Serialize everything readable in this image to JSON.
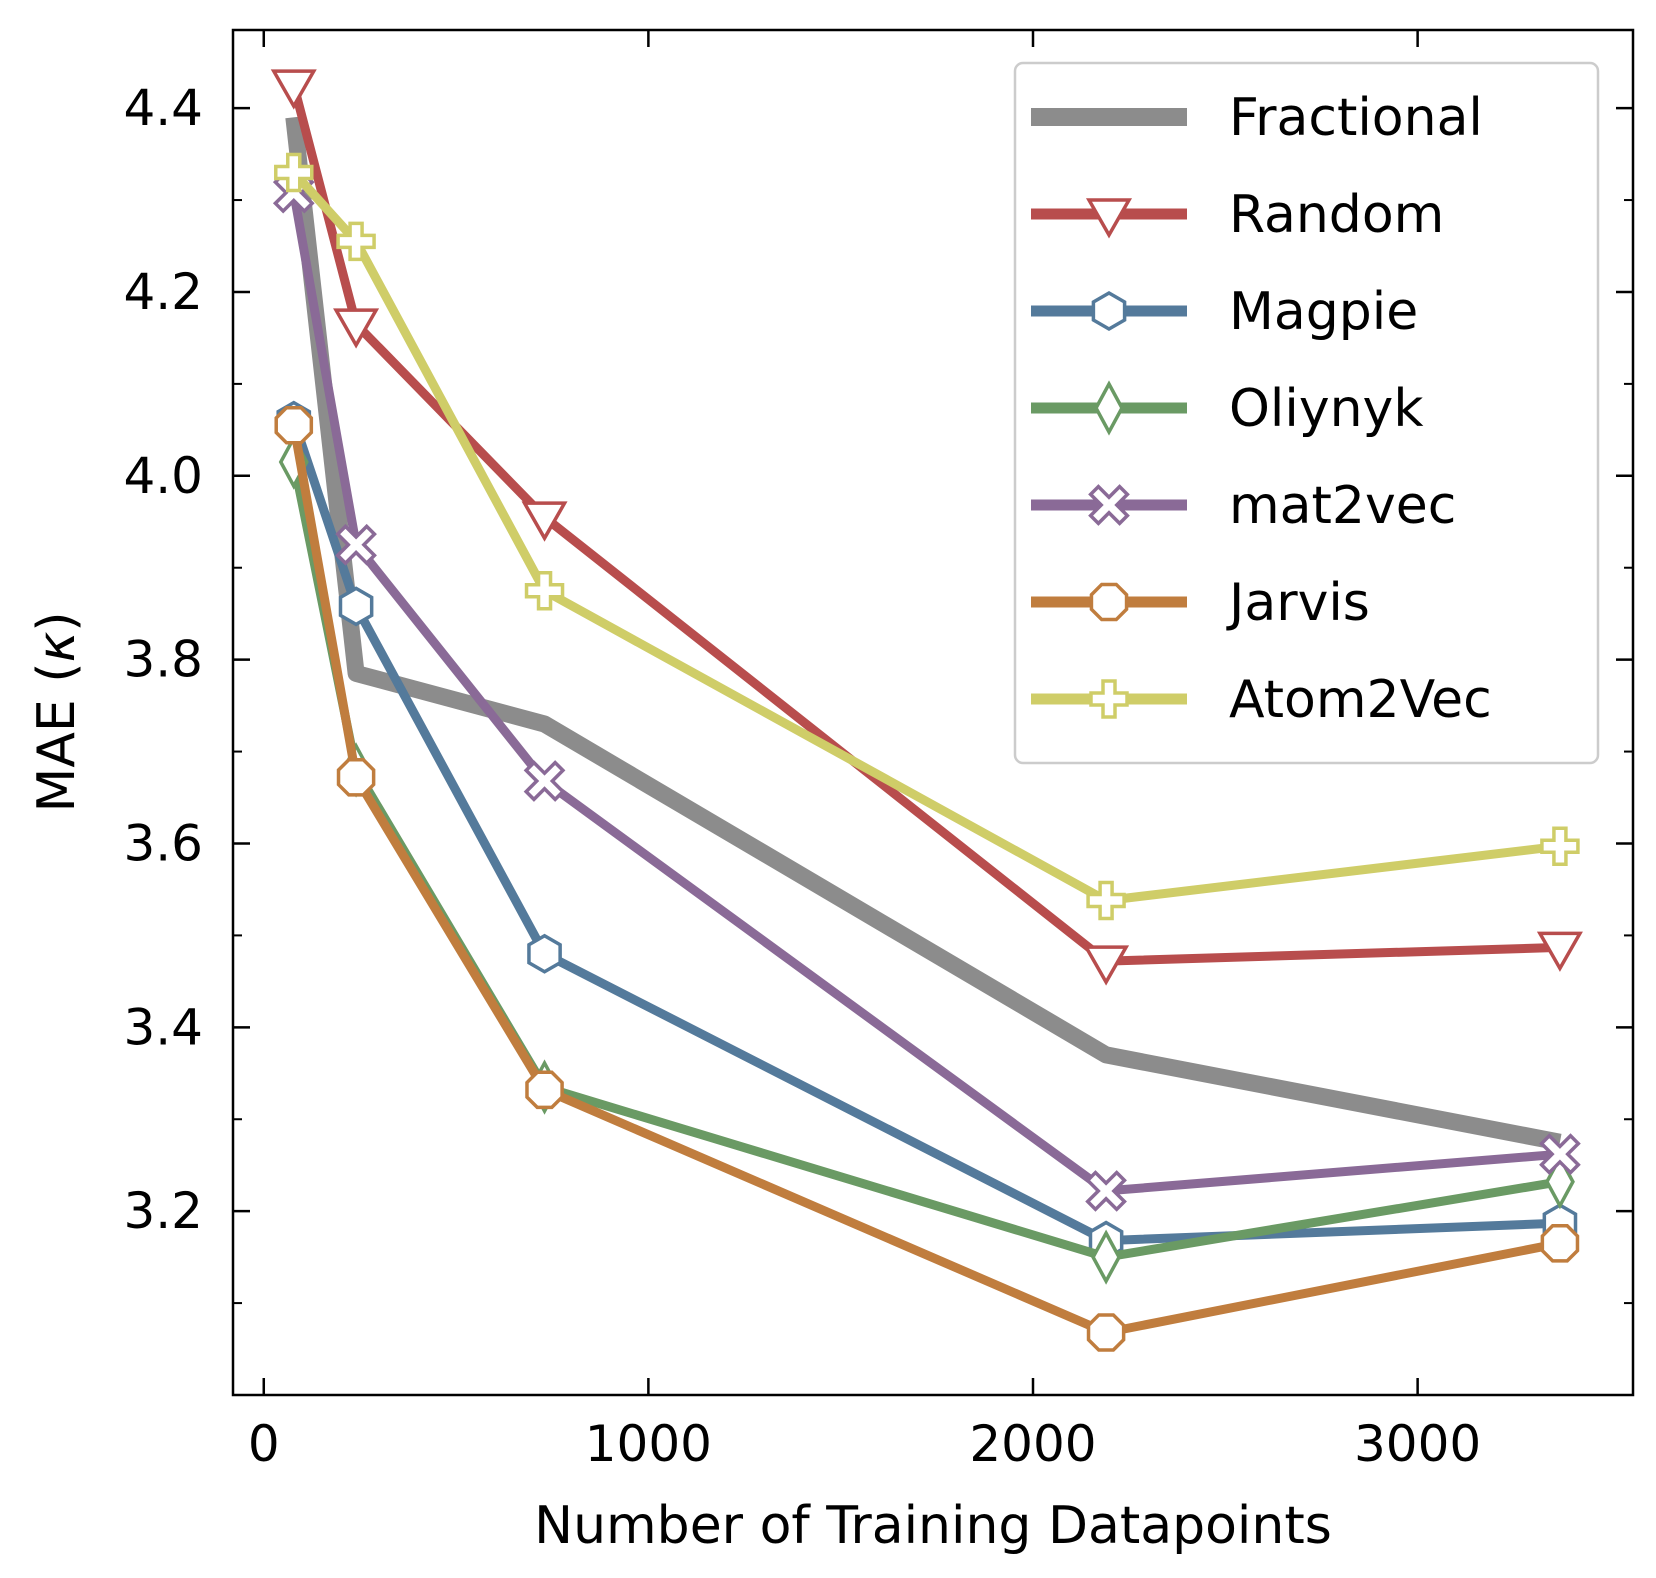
{
  "chart_data": {
    "type": "line",
    "xlabel": "Number of Training Datapoints",
    "ylabel_main": "MAE (",
    "ylabel_symbol": "κ",
    "ylabel_close": ")",
    "xlim": [
      -80,
      3560
    ],
    "ylim": [
      3.0,
      4.485
    ],
    "xticks": [
      0,
      1000,
      2000,
      3000
    ],
    "yticks": [
      3.2,
      3.4,
      3.6,
      3.8,
      4.0,
      4.2,
      4.4
    ],
    "yminor_ticks": [
      3.1,
      3.3,
      3.5,
      3.7,
      3.9,
      4.1,
      4.3
    ],
    "grid": false,
    "legend_position": "top-right",
    "x": [
      78,
      240,
      730,
      2190,
      3370
    ],
    "series": [
      {
        "name": "Fractional",
        "color": "#8c8c8c",
        "marker": "none",
        "values": [
          4.39,
          3.785,
          3.73,
          3.37,
          3.275
        ]
      },
      {
        "name": "Random",
        "color": "#b84d4d",
        "marker": "triangle-down",
        "values": [
          4.425,
          4.165,
          3.955,
          3.472,
          3.487
        ]
      },
      {
        "name": "Magpie",
        "color": "#547a9b",
        "marker": "hexagon",
        "values": [
          4.06,
          3.858,
          3.48,
          3.168,
          3.187
        ]
      },
      {
        "name": "Oliynyk",
        "color": "#6a9a64",
        "marker": "thin-diamond",
        "values": [
          4.015,
          3.68,
          3.335,
          3.15,
          3.232
        ]
      },
      {
        "name": "mat2vec",
        "color": "#8a6a97",
        "marker": "x",
        "values": [
          4.308,
          3.925,
          3.668,
          3.222,
          3.262
        ]
      },
      {
        "name": "Jarvis",
        "color": "#c07d3e",
        "marker": "octagon",
        "values": [
          4.055,
          3.672,
          3.332,
          3.068,
          3.165
        ]
      },
      {
        "name": "Atom2Vec",
        "color": "#cfcd68",
        "marker": "plus",
        "values": [
          4.33,
          4.255,
          3.875,
          3.538,
          3.597
        ]
      }
    ]
  }
}
